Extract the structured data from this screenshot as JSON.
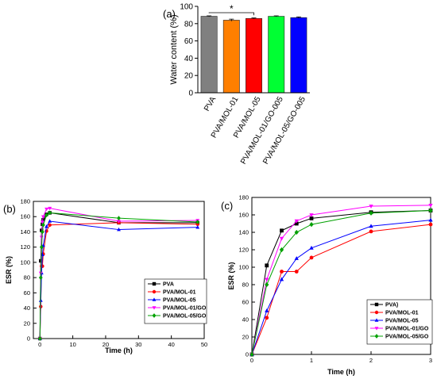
{
  "colors": {
    "PVA": "#000000",
    "PVA/MOL-01": "#ff0000",
    "PVA/MOL-05": "#0000ff",
    "PVA/MOL-01/GO": "#ff00ff",
    "PVA/MOL-05/GO": "#00a000"
  },
  "chart_data": [
    {
      "type": "bar",
      "panel_label": "(a)",
      "categories": [
        "PVA",
        "PVA/MOL-01",
        "PVA/MOL-05",
        "PVA/MOL-01/GO-005",
        "PVA/MOL-05/GO-005"
      ],
      "values": [
        88.5,
        84,
        86,
        88.5,
        87
      ],
      "errors": [
        0.5,
        1.2,
        0.6,
        0.5,
        0.8
      ],
      "bar_colors": [
        "#808080",
        "#ff7f00",
        "#ff0000",
        "#00ff33",
        "#0000ff"
      ],
      "ylabel": "Water content (%)",
      "ylim": [
        0,
        100
      ],
      "yticks": [
        0,
        20,
        40,
        60,
        80,
        100
      ],
      "significance": {
        "from": 0,
        "to": 2,
        "label": "*"
      }
    },
    {
      "type": "line",
      "panel_label": "(b)",
      "xlabel": "Time (h)",
      "ylabel": "ESR (%)",
      "xlim": [
        -2,
        50
      ],
      "ylim": [
        0,
        180
      ],
      "xticks": [
        0,
        10,
        20,
        30,
        40,
        50
      ],
      "yticks": [
        0,
        20,
        40,
        60,
        80,
        100,
        120,
        140,
        160,
        180
      ],
      "legend_position": "bottom-right",
      "series": [
        {
          "name": "PVA",
          "marker": "square",
          "x": [
            0,
            0.25,
            0.5,
            0.75,
            1,
            2,
            3,
            24,
            48
          ],
          "y": [
            0,
            102,
            142,
            150,
            156,
            163,
            165,
            152,
            152
          ]
        },
        {
          "name": "PVA/MOL-01",
          "marker": "circle",
          "x": [
            0,
            0.25,
            0.5,
            0.75,
            1,
            2,
            3,
            24,
            48
          ],
          "y": [
            0,
            42,
            95,
            95,
            111,
            141,
            149,
            152,
            150
          ]
        },
        {
          "name": "PVA/MOL-05",
          "marker": "triangle-up",
          "x": [
            0,
            0.25,
            0.5,
            0.75,
            1,
            2,
            3,
            24,
            48
          ],
          "y": [
            0,
            50,
            86,
            110,
            122,
            147,
            154,
            143,
            146
          ]
        },
        {
          "name": "PVA/MOL-01/GO",
          "marker": "triangle-down",
          "x": [
            0,
            0.25,
            0.5,
            0.75,
            1,
            2,
            3,
            24,
            48
          ],
          "y": [
            0,
            86,
            133,
            153,
            160,
            170,
            171,
            154,
            155
          ]
        },
        {
          "name": "PVA/MOL-05/GO",
          "marker": "diamond",
          "x": [
            0,
            0.25,
            0.5,
            0.75,
            1,
            2,
            3,
            24,
            48
          ],
          "y": [
            0,
            80,
            120,
            140,
            149,
            162,
            165,
            158,
            153
          ]
        }
      ]
    },
    {
      "type": "line",
      "panel_label": "(c)",
      "xlabel": "Time (h)",
      "ylabel": "ESR (%)",
      "xlim": [
        0,
        3
      ],
      "ylim": [
        0,
        180
      ],
      "xticks": [
        0,
        1,
        2,
        3
      ],
      "yticks": [
        0,
        20,
        40,
        60,
        80,
        100,
        120,
        140,
        160,
        180
      ],
      "legend_position": "bottom-right",
      "series": [
        {
          "name": "PVA)",
          "marker": "square",
          "x": [
            0,
            0.25,
            0.5,
            0.75,
            1,
            2,
            3
          ],
          "y": [
            0,
            102,
            142,
            150,
            156,
            163,
            165
          ]
        },
        {
          "name": "PVA/MOL-01",
          "marker": "circle",
          "x": [
            0,
            0.25,
            0.5,
            0.75,
            1,
            2,
            3
          ],
          "y": [
            0,
            42,
            95,
            95,
            111,
            141,
            149
          ]
        },
        {
          "name": "PVA/MOL-05",
          "marker": "triangle-up",
          "x": [
            0,
            0.25,
            0.5,
            0.75,
            1,
            2,
            3
          ],
          "y": [
            0,
            50,
            86,
            110,
            122,
            147,
            154
          ]
        },
        {
          "name": "PVA/MOL-01/GO",
          "marker": "triangle-down",
          "x": [
            0,
            0.25,
            0.5,
            0.75,
            1,
            2,
            3
          ],
          "y": [
            0,
            86,
            133,
            153,
            160,
            170,
            171
          ]
        },
        {
          "name": "PVA/MOL-05/GO",
          "marker": "diamond",
          "x": [
            0,
            0.25,
            0.5,
            0.75,
            1,
            2,
            3
          ],
          "y": [
            0,
            80,
            120,
            140,
            149,
            162,
            165
          ]
        }
      ]
    }
  ]
}
